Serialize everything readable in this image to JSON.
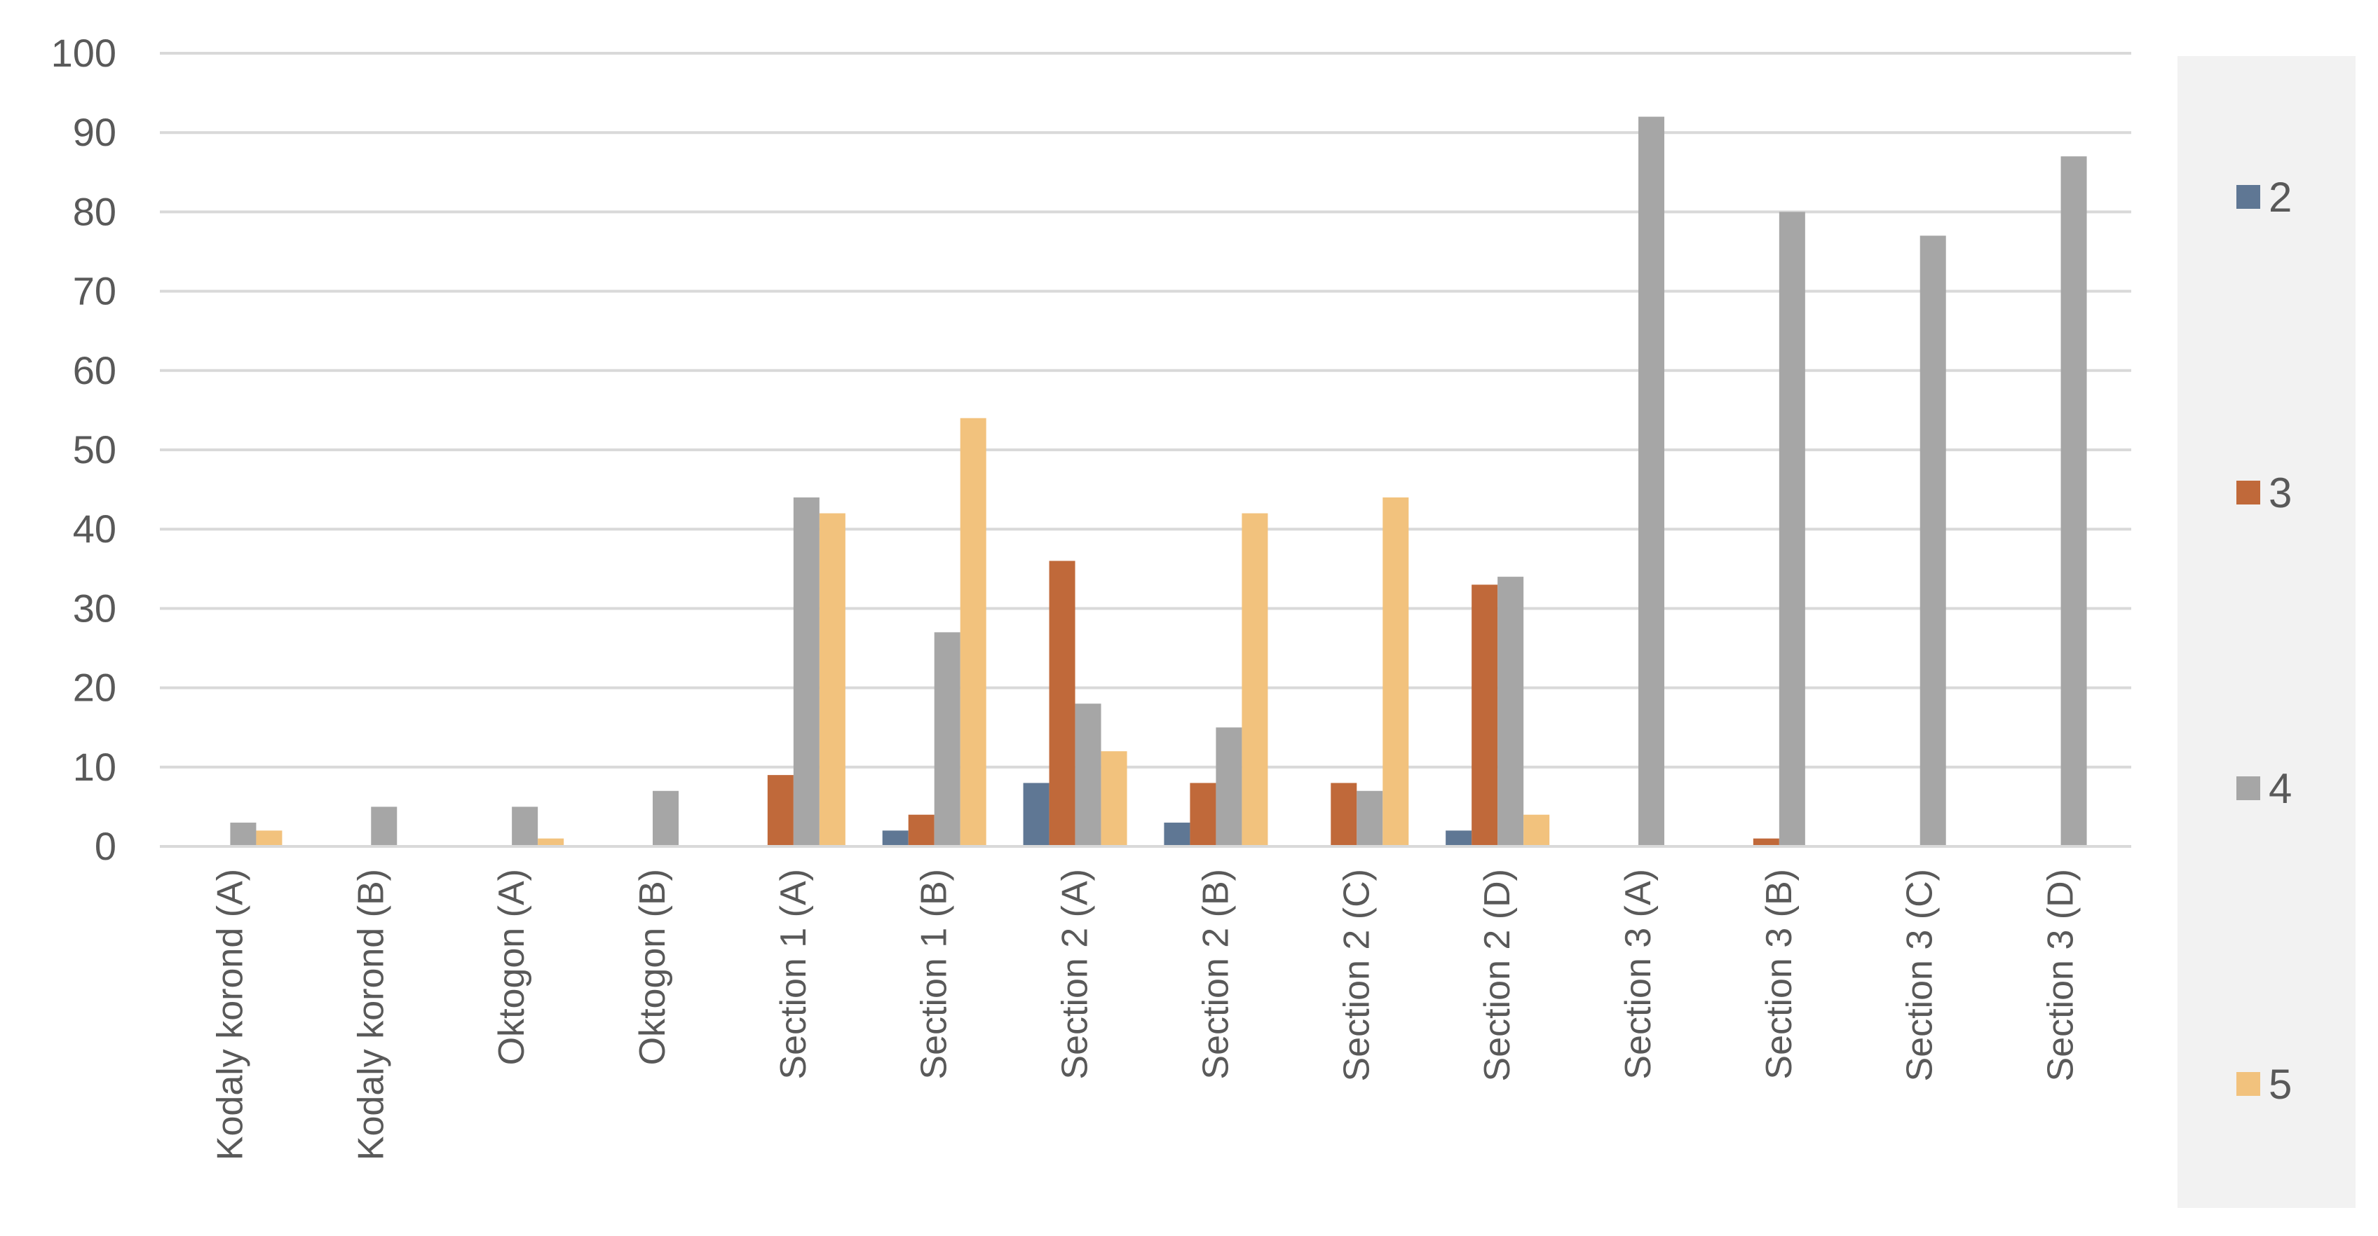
{
  "chart_data": {
    "type": "bar",
    "title": "",
    "xlabel": "",
    "ylabel": "",
    "ylim": [
      0,
      100
    ],
    "yticks": [
      0,
      10,
      20,
      30,
      40,
      50,
      60,
      70,
      80,
      90,
      100
    ],
    "grid": true,
    "legend_position": "right",
    "categories": [
      "Kodaly korond (A)",
      "Kodaly korond (B)",
      "Oktogon (A)",
      "Oktogon (B)",
      "Section 1 (A)",
      "Section 1 (B)",
      "Section 2 (A)",
      "Section 2 (B)",
      "Section 2 (C)",
      "Section 2 (D)",
      "Section 3 (A)",
      "Section 3 (B)",
      "Section 3 (C)",
      "Section 3 (D)"
    ],
    "series": [
      {
        "name": "2",
        "color": "#5f7794",
        "values": [
          0,
          0,
          0,
          0,
          0,
          2,
          8,
          3,
          0,
          2,
          0,
          0,
          0,
          0
        ]
      },
      {
        "name": "3",
        "color": "#c0693a",
        "values": [
          0,
          0,
          0,
          0,
          9,
          4,
          36,
          8,
          8,
          33,
          0,
          1,
          0,
          0
        ]
      },
      {
        "name": "4",
        "color": "#a6a6a6",
        "values": [
          3,
          5,
          5,
          7,
          44,
          27,
          18,
          15,
          7,
          34,
          92,
          80,
          77,
          87
        ]
      },
      {
        "name": "5",
        "color": "#f2c27d",
        "values": [
          2,
          0,
          1,
          0,
          42,
          54,
          12,
          42,
          44,
          4,
          0,
          0,
          0,
          0
        ]
      }
    ]
  },
  "legend": {
    "background": "#f2f2f2"
  }
}
